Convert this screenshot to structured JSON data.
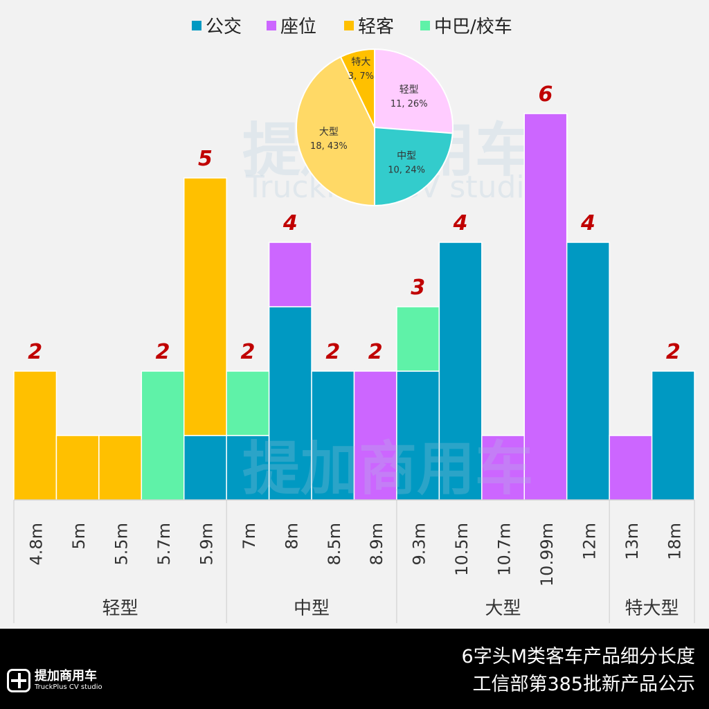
{
  "chart_data": {
    "type": "bar",
    "stacked": true,
    "legend": {
      "placement": "top",
      "entries": [
        "公交",
        "座位",
        "轻客",
        "中巴/校车"
      ]
    },
    "series_colors": {
      "公交": "#0099c2",
      "座位": "#cc66ff",
      "轻客": "#ffc000",
      "中巴/校车": "#5ff2a8"
    },
    "categories": [
      "4.8m",
      "5m",
      "5.5m",
      "5.7m",
      "5.9m",
      "7m",
      "8m",
      "8.5m",
      "8.9m",
      "9.3m",
      "10.5m",
      "10.7m",
      "10.99m",
      "12m",
      "13m",
      "18m"
    ],
    "series": [
      {
        "name": "公交",
        "values": [
          0,
          0,
          0,
          0,
          1,
          1,
          3,
          2,
          0,
          2,
          4,
          0,
          0,
          4,
          0,
          2
        ]
      },
      {
        "name": "座位",
        "values": [
          0,
          0,
          0,
          0,
          0,
          0,
          1,
          0,
          2,
          0,
          0,
          1,
          6,
          0,
          1,
          0
        ]
      },
      {
        "name": "轻客",
        "values": [
          2,
          1,
          1,
          0,
          4,
          0,
          0,
          0,
          0,
          0,
          0,
          0,
          0,
          0,
          0,
          0
        ]
      },
      {
        "name": "中巴/校车",
        "values": [
          0,
          0,
          0,
          2,
          0,
          1,
          0,
          0,
          0,
          1,
          0,
          0,
          0,
          0,
          0,
          0
        ]
      }
    ],
    "total_labels": [
      "2",
      "",
      "",
      "2",
      "5",
      "2",
      "4",
      "2",
      "2",
      "3",
      "4",
      "",
      "6",
      "4",
      "",
      "2"
    ],
    "groups": [
      {
        "label": "轻型",
        "count": 5
      },
      {
        "label": "中型",
        "count": 4
      },
      {
        "label": "大型",
        "count": 5
      },
      {
        "label": "特大型",
        "count": 2
      }
    ],
    "ylim": [
      0,
      7
    ],
    "pie": {
      "slices": [
        {
          "label": "轻型",
          "value": 11,
          "text": "11, 26%",
          "color": "#ffccff"
        },
        {
          "label": "中型",
          "value": 10,
          "text": "10, 24%",
          "color": "#33cccc"
        },
        {
          "label": "大型",
          "value": 18,
          "text": "18, 43%",
          "color": "#ffd966"
        },
        {
          "label": "特大",
          "value": 3,
          "text": "3, 7%",
          "color": "#ffc000"
        }
      ]
    }
  },
  "footer": {
    "title_line1": "6字头M类客车产品细分长度",
    "title_line2": "工信部第385批新产品公示",
    "logo_cn": "提加商用车",
    "logo_en": "TruckPlus CV studio"
  },
  "watermark": {
    "cn": "提加商用车",
    "en": "TruckPlus CV studio"
  }
}
